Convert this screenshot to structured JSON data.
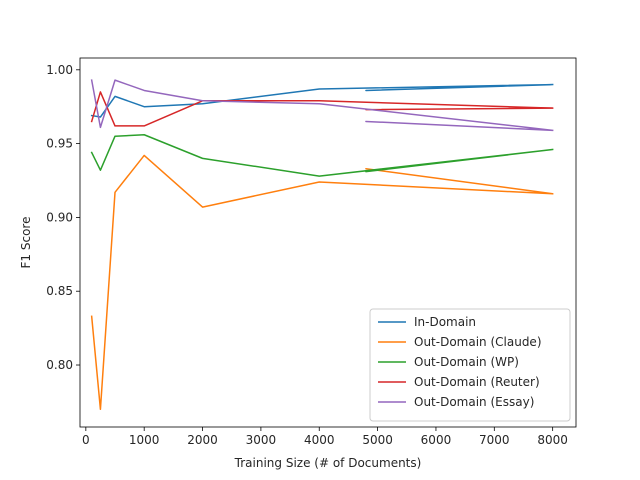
{
  "chart_data": {
    "type": "line",
    "title": "",
    "xlabel": "Training Size (# of Documents)",
    "ylabel": "F1 Score",
    "xlim": [
      -100,
      8400
    ],
    "ylim": [
      0.758,
      1.008
    ],
    "xticks": [
      0,
      1000,
      2000,
      3000,
      4000,
      5000,
      6000,
      7000,
      8000
    ],
    "xtick_labels": [
      "0",
      "1000",
      "2000",
      "3000",
      "4000",
      "5000",
      "6000",
      "7000",
      "8000"
    ],
    "yticks": [
      0.8,
      0.85,
      0.9,
      0.95,
      1.0
    ],
    "ytick_labels": [
      "0.80",
      "0.85",
      "0.90",
      "0.95",
      "1.00"
    ],
    "grid": false,
    "legend_position": "lower-right",
    "series": [
      {
        "name": "In-Domain",
        "color": "#1f77b4",
        "x": [
          100,
          250,
          500,
          1000,
          2000,
          4000,
          8000,
          4800,
          8000
        ],
        "y": [
          0.969,
          0.968,
          0.982,
          0.975,
          0.977,
          0.987,
          0.99,
          0.986,
          0.99
        ]
      },
      {
        "name": "Out-Domain (Claude)",
        "color": "#ff7f0e",
        "x": [
          100,
          250,
          500,
          1000,
          2000,
          4000,
          8000,
          4800,
          8000
        ],
        "y": [
          0.833,
          0.77,
          0.917,
          0.942,
          0.907,
          0.924,
          0.916,
          0.933,
          0.916
        ]
      },
      {
        "name": "Out-Domain (WP)",
        "color": "#2ca02c",
        "x": [
          100,
          250,
          500,
          1000,
          2000,
          4000,
          8000,
          4800,
          8000
        ],
        "y": [
          0.944,
          0.932,
          0.955,
          0.956,
          0.94,
          0.928,
          0.946,
          0.931,
          0.946
        ]
      },
      {
        "name": "Out-Domain (Reuter)",
        "color": "#d62728",
        "x": [
          100,
          250,
          500,
          1000,
          2000,
          4000,
          8000,
          4800,
          8000
        ],
        "y": [
          0.965,
          0.985,
          0.962,
          0.962,
          0.979,
          0.979,
          0.974,
          0.973,
          0.974
        ]
      },
      {
        "name": "Out-Domain (Essay)",
        "color": "#9467bd",
        "x": [
          100,
          250,
          500,
          1000,
          2000,
          4000,
          8000,
          4800,
          8000
        ],
        "y": [
          0.993,
          0.961,
          0.993,
          0.986,
          0.979,
          0.977,
          0.959,
          0.965,
          0.959
        ]
      }
    ]
  }
}
